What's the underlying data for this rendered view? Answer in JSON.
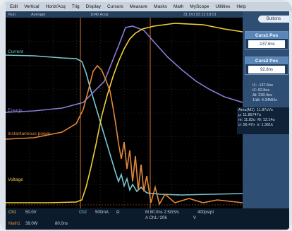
{
  "menu": [
    "Edit",
    "Vertical",
    "Horiz/Acq",
    "Trig",
    "Display",
    "Cursors",
    "Measure",
    "Masks",
    "Math",
    "MyScope",
    "Utilities",
    "Help"
  ],
  "status": {
    "mode": "Run",
    "acq": "Average",
    "count": "1040 Acqs",
    "datetime": "31 Oct 03 12:18:01"
  },
  "traces": [
    {
      "label": "Current",
      "color": "#79c8cf"
    },
    {
      "label": "Energy",
      "color": "#8a7bd8"
    },
    {
      "label": "Instantaneous power",
      "color": "#e3893a"
    },
    {
      "label": "Voltage",
      "color": "#f2cf3c"
    }
  ],
  "side": {
    "buttons_label": "Buttons",
    "curs1": {
      "title": "Curs1 Pos",
      "value": "-137.6ns"
    },
    "curs2": {
      "title": "Curs2 Pos",
      "value": "92.8ns"
    }
  },
  "readout": [
    "t1: -137.6ns",
    "t2: 92.8ns",
    "Δt: 230.4ns",
    "1/Δt: 4.34MHz"
  ],
  "meas": {
    "row1a": "Area(M1)",
    "row1b": "11.87uVs",
    "row2a": "μ: 11.85747u",
    "row3a": "m: 11.82u",
    "row3b": "M: 12.14u",
    "row4a": "σ: 56.47n",
    "row4b": "n: 1.361k"
  },
  "bottom": {
    "ch1": "Ch1",
    "ch1_scale": "50.0V",
    "ch2": "Ch2",
    "ch2_scale": "500mA",
    "omega": "Ω",
    "time": "M 80.0ns 2.5GS/s",
    "pts": "400ps/pt",
    "trig": "A Ch1 ∕ 206",
    "trig_unit": "V",
    "math": "Math1",
    "math_scale": "39.0W",
    "math_time": "80.0ns"
  }
}
